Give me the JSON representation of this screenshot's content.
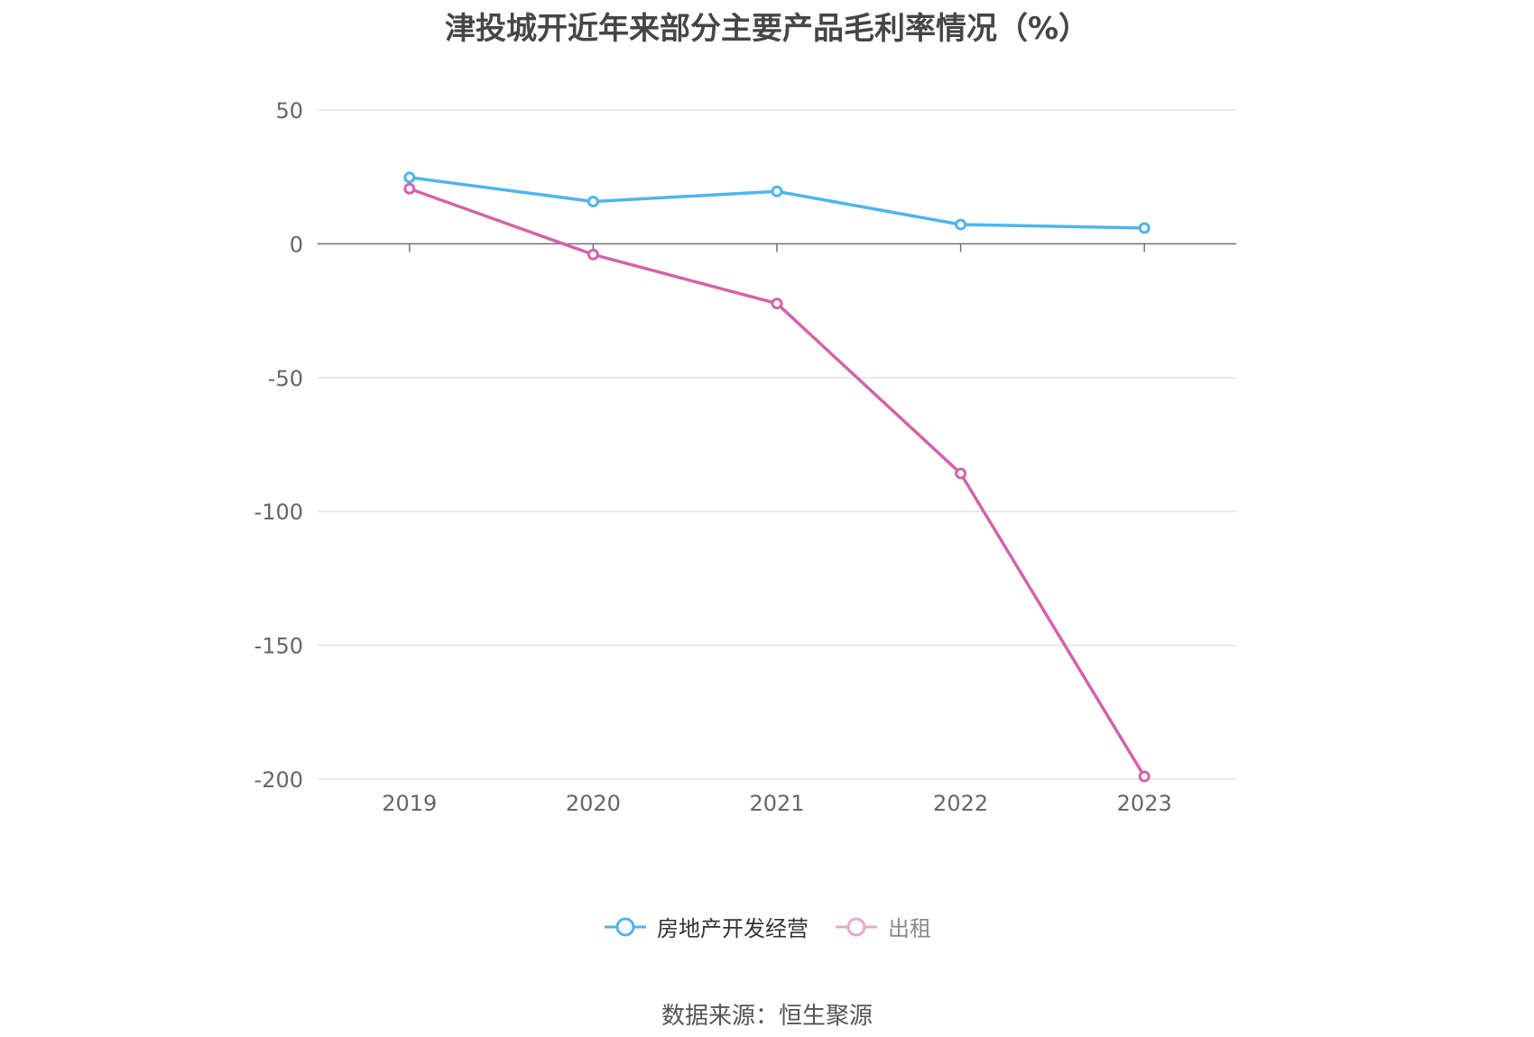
{
  "chart_data": {
    "type": "line",
    "title": "津投城开近年来部分主要产品毛利率情况（%）",
    "categories": [
      "2019",
      "2020",
      "2021",
      "2022",
      "2023"
    ],
    "series": [
      {
        "name": "房地产开发经营",
        "values": [
          24.8,
          15.8,
          19.6,
          7.2,
          5.9
        ],
        "color": "#4fb5ec"
      },
      {
        "name": "出租",
        "values": [
          20.6,
          -4.0,
          -22.3,
          -85.8,
          -199.0
        ],
        "color": "#d363ab"
      }
    ],
    "yticks": [
      50,
      0,
      -50,
      -100,
      -150,
      -200
    ],
    "ylim": [
      -200,
      50
    ],
    "grid": true,
    "legend_position": "bottom"
  },
  "source": "数据来源：恒生聚源"
}
